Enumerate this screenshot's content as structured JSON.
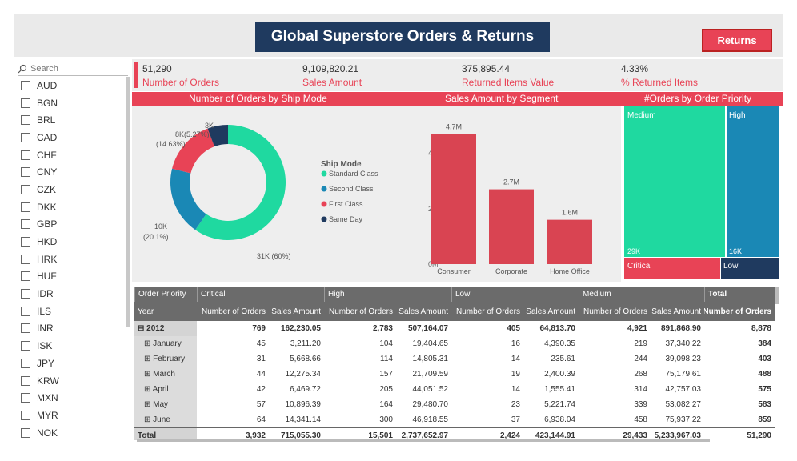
{
  "title": "Global Superstore Orders & Returns",
  "returns_label": "Returns",
  "search_placeholder": "Search",
  "currencies": [
    "AUD",
    "BGN",
    "BRL",
    "CAD",
    "CHF",
    "CNY",
    "CZK",
    "DKK",
    "GBP",
    "HKD",
    "HRK",
    "HUF",
    "IDR",
    "ILS",
    "INR",
    "ISK",
    "JPY",
    "KRW",
    "MXN",
    "MYR",
    "NOK"
  ],
  "kpis": [
    {
      "value": "51,290",
      "label": "Number of Orders"
    },
    {
      "value": "9,109,820.21",
      "label": "Sales Amount"
    },
    {
      "value": "375,895.44",
      "label": "Returned Items Value"
    },
    {
      "value": "4.33%",
      "label": "% Returned Items"
    }
  ],
  "section_titles": {
    "ship": "Number of Orders by Ship Mode",
    "segment": "Sales Amount by Segment",
    "priority": "#Orders by Order Priority"
  },
  "colors": {
    "accent": "#e84356",
    "teal": "#1fd9a0",
    "blue": "#1a88b5",
    "navy": "#1f3a5f",
    "red": "#e84356"
  },
  "donut": {
    "legend_title": "Ship Mode",
    "slices": [
      {
        "name": "Standard Class",
        "value": 31,
        "label": "31K (60%)",
        "color": "#1fd9a0"
      },
      {
        "name": "Second Class",
        "value": 10,
        "label": "10K (20.1%)",
        "color": "#1a88b5"
      },
      {
        "name": "First Class",
        "value": 8,
        "label": "8K(5.27%) (14.63%)",
        "color": "#e84356"
      },
      {
        "name": "Same Day",
        "value": 3,
        "label": "3K",
        "color": "#1f3a5f"
      }
    ],
    "label_texts": {
      "top": "3K",
      "tl1": "8K(5.27%)",
      "tl2": "(14.63%)",
      "left1": "10K",
      "left2": "(20.1%)",
      "right": "31K (60%)"
    }
  },
  "chart_data": {
    "type": "bar",
    "categories": [
      "Consumer",
      "Corporate",
      "Home Office"
    ],
    "values": [
      4.7,
      2.7,
      1.6
    ],
    "data_labels": [
      "4.7M",
      "2.7M",
      "1.6M"
    ],
    "yticks": [
      "0M",
      "2M",
      "4M"
    ],
    "ylim": [
      0,
      5
    ]
  },
  "treemap": [
    {
      "name": "Medium",
      "value": "29K",
      "color": "#1fd9a0"
    },
    {
      "name": "High",
      "value": "16K",
      "color": "#1a88b5"
    },
    {
      "name": "Critical",
      "value": "",
      "color": "#e84356"
    },
    {
      "name": "Low",
      "value": "",
      "color": "#1f3a5f"
    }
  ],
  "matrix": {
    "groups": [
      "Order Priority",
      "Critical",
      "High",
      "Low",
      "Medium",
      "Total"
    ],
    "subheaders": [
      "Year",
      "Number of Orders",
      "Sales Amount",
      "Number of Orders",
      "Sales Amount",
      "Number of Orders",
      "Sales Amount",
      "Number of Orders",
      "Sales Amount",
      "Number of Orders"
    ],
    "rows": [
      {
        "label": "⊟ 2012",
        "type": "year",
        "values": [
          "769",
          "162,230.05",
          "2,783",
          "507,164.07",
          "405",
          "64,813.70",
          "4,921",
          "891,868.90",
          "8,878"
        ]
      },
      {
        "label": "⊞ January",
        "type": "month",
        "values": [
          "45",
          "3,211.20",
          "104",
          "19,404.65",
          "16",
          "4,390.35",
          "219",
          "37,340.22",
          "384"
        ]
      },
      {
        "label": "⊞ February",
        "type": "month",
        "values": [
          "31",
          "5,668.66",
          "114",
          "14,805.31",
          "14",
          "235.61",
          "244",
          "39,098.23",
          "403"
        ]
      },
      {
        "label": "⊞ March",
        "type": "month",
        "values": [
          "44",
          "12,275.34",
          "157",
          "21,709.59",
          "19",
          "2,400.39",
          "268",
          "75,179.61",
          "488"
        ]
      },
      {
        "label": "⊞ April",
        "type": "month",
        "values": [
          "42",
          "6,469.72",
          "205",
          "44,051.52",
          "14",
          "1,555.41",
          "314",
          "42,757.03",
          "575"
        ]
      },
      {
        "label": "⊞ May",
        "type": "month",
        "values": [
          "57",
          "10,896.39",
          "164",
          "29,480.70",
          "23",
          "5,221.74",
          "339",
          "53,082.27",
          "583"
        ]
      },
      {
        "label": "⊞ June",
        "type": "month",
        "values": [
          "64",
          "14,341.14",
          "300",
          "46,918.55",
          "37",
          "6,938.04",
          "458",
          "75,937.22",
          "859"
        ]
      },
      {
        "label": "Total",
        "type": "total",
        "values": [
          "3,932",
          "715,055.30",
          "15,501",
          "2,737,652.97",
          "2,424",
          "423,144.91",
          "29,433",
          "5,233,967.03",
          "51,290"
        ]
      }
    ]
  }
}
